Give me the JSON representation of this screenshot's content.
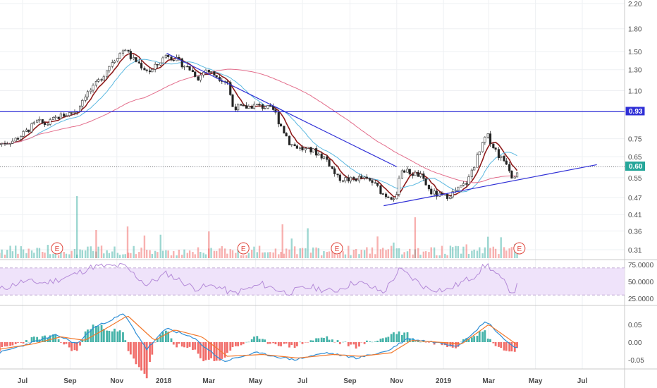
{
  "chart_data": [
    {
      "type": "candlestick",
      "panel": "price",
      "y_scale": "log",
      "ylim": [
        0.29,
        2.25
      ],
      "y_ticks": [
        "2.20",
        "1.80",
        "1.50",
        "1.30",
        "1.10",
        "0.93",
        "0.75",
        "0.65",
        "0.60",
        "0.55",
        "0.47",
        "0.41",
        "0.36",
        "0.31"
      ],
      "x_ticks": [
        "Jul",
        "Sep",
        "Nov",
        "2018",
        "Mar",
        "May",
        "Jul",
        "Sep",
        "Nov",
        "2019",
        "Mar",
        "May",
        "Jul"
      ],
      "x_tick_dates": [
        "2017-07",
        "2017-09",
        "2017-11",
        "2018-01",
        "2018-03",
        "2018-05",
        "2018-07",
        "2018-09",
        "2018-11",
        "2019-01",
        "2019-03",
        "2019-05",
        "2019-07"
      ],
      "close_path": [
        [
          "2017-06-01",
          0.72
        ],
        [
          "2017-06-20",
          0.74
        ],
        [
          "2017-07-05",
          0.79
        ],
        [
          "2017-07-20",
          0.86
        ],
        [
          "2017-08-01",
          0.84
        ],
        [
          "2017-08-15",
          0.89
        ],
        [
          "2017-09-01",
          0.92
        ],
        [
          "2017-09-10",
          0.94
        ],
        [
          "2017-09-20",
          1.06
        ],
        [
          "2017-10-01",
          1.12
        ],
        [
          "2017-10-15",
          1.25
        ],
        [
          "2017-10-25",
          1.38
        ],
        [
          "2017-11-05",
          1.48
        ],
        [
          "2017-11-12",
          1.54
        ],
        [
          "2017-11-20",
          1.42
        ],
        [
          "2017-11-28",
          1.38
        ],
        [
          "2017-12-05",
          1.32
        ],
        [
          "2017-12-15",
          1.28
        ],
        [
          "2017-12-25",
          1.36
        ],
        [
          "2018-01-05",
          1.47
        ],
        [
          "2018-01-15",
          1.42
        ],
        [
          "2018-01-25",
          1.36
        ],
        [
          "2018-02-05",
          1.3
        ],
        [
          "2018-02-15",
          1.22
        ],
        [
          "2018-02-25",
          1.3
        ],
        [
          "2018-03-05",
          1.26
        ],
        [
          "2018-03-15",
          1.22
        ],
        [
          "2018-03-25",
          1.18
        ],
        [
          "2018-04-01",
          0.97
        ],
        [
          "2018-04-15",
          0.96
        ],
        [
          "2018-05-01",
          0.98
        ],
        [
          "2018-05-15",
          0.96
        ],
        [
          "2018-05-25",
          0.94
        ],
        [
          "2018-06-01",
          0.85
        ],
        [
          "2018-06-15",
          0.72
        ],
        [
          "2018-07-01",
          0.69
        ],
        [
          "2018-07-15",
          0.68
        ],
        [
          "2018-08-01",
          0.64
        ],
        [
          "2018-08-15",
          0.55
        ],
        [
          "2018-09-01",
          0.54
        ],
        [
          "2018-09-15",
          0.55
        ],
        [
          "2018-10-01",
          0.53
        ],
        [
          "2018-10-15",
          0.48
        ],
        [
          "2018-11-01",
          0.47
        ],
        [
          "2018-11-05",
          0.59
        ],
        [
          "2018-11-20",
          0.57
        ],
        [
          "2018-12-01",
          0.56
        ],
        [
          "2018-12-15",
          0.49
        ],
        [
          "2019-01-01",
          0.47
        ],
        [
          "2019-01-15",
          0.49
        ],
        [
          "2019-02-01",
          0.53
        ],
        [
          "2019-02-10",
          0.61
        ],
        [
          "2019-02-20",
          0.7
        ],
        [
          "2019-02-26",
          0.78
        ],
        [
          "2019-03-05",
          0.72
        ],
        [
          "2019-03-15",
          0.65
        ],
        [
          "2019-03-25",
          0.62
        ],
        [
          "2019-04-01",
          0.55
        ],
        [
          "2019-04-10",
          0.6
        ]
      ],
      "annotations": {
        "horizontal_level": 0.93,
        "last_price": 0.6,
        "resistance_trendline": [
          [
            "2018-01-05",
            1.48
          ],
          [
            "2018-11-01",
            0.6
          ]
        ],
        "support_trendline": [
          [
            "2018-10-15",
            0.44
          ],
          [
            "2019-07-20",
            0.61
          ]
        ],
        "earnings_markers": [
          "E",
          "E",
          "E",
          "E"
        ],
        "earnings_dates": [
          "2017-08-15",
          "2018-04-15",
          "2018-08-15",
          "2019-04-10"
        ]
      },
      "series": [
        {
          "name": "",
          "color": "#8e1c1c"
        },
        {
          "name": "",
          "color": "#5bb8e0"
        },
        {
          "name": "",
          "color": "#e36e8c"
        }
      ]
    },
    {
      "type": "line",
      "panel": "rsi",
      "ylim": [
        15,
        82
      ],
      "y_ticks": [
        "75.0000",
        "50.0000",
        "25.0000"
      ],
      "levels": [
        70,
        30
      ],
      "values_sampled": [
        [
          "2017-06-01",
          38
        ],
        [
          "2017-07-01",
          50
        ],
        [
          "2017-08-01",
          48
        ],
        [
          "2017-09-01",
          58
        ],
        [
          "2017-10-01",
          72
        ],
        [
          "2017-11-10",
          73
        ],
        [
          "2017-12-10",
          45
        ],
        [
          "2018-01-05",
          62
        ],
        [
          "2018-02-10",
          40
        ],
        [
          "2018-03-10",
          44
        ],
        [
          "2018-04-01",
          32
        ],
        [
          "2018-05-10",
          46
        ],
        [
          "2018-06-10",
          33
        ],
        [
          "2018-07-10",
          42
        ],
        [
          "2018-08-10",
          35
        ],
        [
          "2018-09-10",
          50
        ],
        [
          "2018-10-15",
          34
        ],
        [
          "2018-11-05",
          68
        ],
        [
          "2018-12-10",
          40
        ],
        [
          "2019-01-05",
          37
        ],
        [
          "2019-02-10",
          58
        ],
        [
          "2019-02-26",
          76
        ],
        [
          "2019-03-20",
          50
        ],
        [
          "2019-04-01",
          33
        ],
        [
          "2019-04-10",
          48
        ]
      ]
    },
    {
      "type": "macd",
      "panel": "macd",
      "ylim": [
        -0.08,
        0.09
      ],
      "y_ticks": [
        "0.05",
        "0.00",
        "-0.05"
      ],
      "macd_sampled": [
        [
          "2017-06-01",
          -0.03
        ],
        [
          "2017-07-15",
          0.0
        ],
        [
          "2017-08-15",
          0.02
        ],
        [
          "2017-09-10",
          -0.005
        ],
        [
          "2017-10-01",
          0.04
        ],
        [
          "2017-11-10",
          0.08
        ],
        [
          "2017-12-10",
          -0.02
        ],
        [
          "2018-01-05",
          0.04
        ],
        [
          "2018-02-10",
          0.01
        ],
        [
          "2018-03-20",
          -0.055
        ],
        [
          "2018-05-01",
          -0.03
        ],
        [
          "2018-06-20",
          -0.05
        ],
        [
          "2018-08-01",
          -0.03
        ],
        [
          "2018-09-10",
          -0.045
        ],
        [
          "2018-10-20",
          -0.025
        ],
        [
          "2018-11-15",
          0.01
        ],
        [
          "2018-12-20",
          0.0
        ],
        [
          "2019-01-20",
          -0.01
        ],
        [
          "2019-02-26",
          0.06
        ],
        [
          "2019-03-25",
          0.0
        ],
        [
          "2019-04-10",
          -0.02
        ]
      ],
      "signal_sampled": [
        [
          "2017-06-01",
          -0.02
        ],
        [
          "2017-07-15",
          -0.005
        ],
        [
          "2017-08-20",
          0.015
        ],
        [
          "2017-09-20",
          0.005
        ],
        [
          "2017-10-15",
          0.035
        ],
        [
          "2017-11-15",
          0.075
        ],
        [
          "2017-12-20",
          0.005
        ],
        [
          "2018-01-15",
          0.035
        ],
        [
          "2018-02-20",
          0.015
        ],
        [
          "2018-03-25",
          -0.04
        ],
        [
          "2018-05-10",
          -0.035
        ],
        [
          "2018-06-25",
          -0.045
        ],
        [
          "2018-08-10",
          -0.035
        ],
        [
          "2018-09-15",
          -0.04
        ],
        [
          "2018-10-25",
          -0.03
        ],
        [
          "2018-11-20",
          0.005
        ],
        [
          "2018-12-25",
          0.0
        ],
        [
          "2019-01-25",
          -0.005
        ],
        [
          "2019-03-01",
          0.05
        ],
        [
          "2019-03-30",
          0.005
        ],
        [
          "2019-04-10",
          -0.012
        ]
      ]
    }
  ],
  "colors": {
    "up": "#26a69a",
    "down": "#ef5350",
    "trendline": "#2f2fd6",
    "rsi": "#b48ad8",
    "rsi_band": "#efe3fa",
    "macd": "#2d8ed6",
    "signal": "#f2782c",
    "hist_up": "#26a69a",
    "hist_down": "#ef5350"
  },
  "labels": {
    "tag_level": "0.93",
    "tag_last": "0.60",
    "rsi_75": "75.0000",
    "rsi_50": "50.0000",
    "rsi_25": "25.0000",
    "macd_pos": "0.05",
    "macd_zero": "0.00",
    "macd_neg": "-0.05"
  }
}
